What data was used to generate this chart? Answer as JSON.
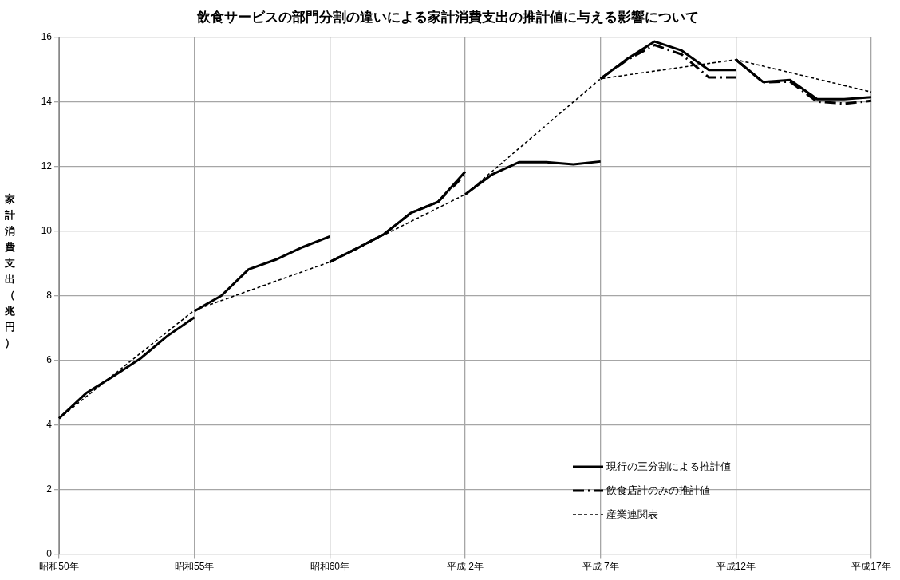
{
  "chart_data": {
    "type": "line",
    "title": "飲食サービスの部門分割の違いによる家計消費支出の推計値に与える影響について",
    "ylabel": "家計消費支出（兆円）",
    "categories": [
      "昭和50年",
      null,
      null,
      null,
      null,
      "昭和55年",
      null,
      null,
      null,
      null,
      "昭和60年",
      null,
      null,
      null,
      null,
      "平成 2年",
      null,
      null,
      null,
      null,
      "平成 7年",
      null,
      null,
      null,
      null,
      "平成12年",
      null,
      null,
      null,
      null,
      "平成17年"
    ],
    "ylim": [
      0,
      16
    ],
    "yticks": [
      0,
      2,
      4,
      6,
      8,
      10,
      12,
      14,
      16
    ],
    "grid": true,
    "legend": "bottom right",
    "marker": "none",
    "series": [
      {
        "name": "現行の三分割による推計値",
        "color": "#000000",
        "line_style": "solid",
        "values": [
          4.2,
          4.98,
          5.5,
          6.05,
          6.75,
          7.33,
          null,
          null,
          null,
          null,
          null,
          null,
          null,
          null,
          null,
          null,
          null,
          null,
          null,
          null,
          null,
          null,
          null,
          null,
          null,
          null,
          null,
          null,
          null,
          null,
          null
        ]
      },
      {
        "color": "#000000",
        "line_style": "solid",
        "values": [
          null,
          null,
          null,
          null,
          null,
          7.52,
          8.0,
          8.81,
          9.11,
          9.5,
          9.83,
          null,
          null,
          null,
          null,
          null,
          null,
          null,
          null,
          null,
          null,
          null,
          null,
          null,
          null,
          null,
          null,
          null,
          null,
          null,
          null
        ]
      },
      {
        "color": "#000000",
        "line_style": "solid",
        "values": [
          null,
          null,
          null,
          null,
          null,
          null,
          null,
          null,
          null,
          null,
          9.04,
          9.46,
          9.9,
          10.56,
          10.9,
          11.83,
          null,
          null,
          null,
          null,
          null,
          null,
          null,
          null,
          null,
          null,
          null,
          null,
          null,
          null,
          null
        ]
      },
      {
        "color": "#000000",
        "line_style": "solid",
        "values": [
          null,
          null,
          null,
          null,
          null,
          null,
          null,
          null,
          null,
          null,
          null,
          null,
          null,
          null,
          null,
          11.13,
          11.75,
          12.13,
          12.13,
          12.06,
          12.15,
          null,
          null,
          null,
          null,
          null,
          null,
          null,
          null,
          null,
          null
        ]
      },
      {
        "color": "#000000",
        "line_style": "solid",
        "values": [
          null,
          null,
          null,
          null,
          null,
          null,
          null,
          null,
          null,
          null,
          null,
          null,
          null,
          null,
          null,
          null,
          null,
          null,
          null,
          null,
          14.71,
          15.33,
          15.86,
          15.58,
          14.98,
          14.98,
          null,
          null,
          null,
          null,
          null
        ]
      },
      {
        "color": "#000000",
        "line_style": "solid",
        "values": [
          null,
          null,
          null,
          null,
          null,
          null,
          null,
          null,
          null,
          null,
          null,
          null,
          null,
          null,
          null,
          null,
          null,
          null,
          null,
          null,
          null,
          null,
          null,
          null,
          null,
          15.3,
          14.61,
          14.67,
          14.08,
          14.08,
          14.14
        ]
      },
      {
        "name": "飲食店計のみの推計値",
        "color": "#000000",
        "line_style": "dashed",
        "values": [
          null,
          null,
          null,
          null,
          null,
          null,
          null,
          null,
          null,
          null,
          9.04,
          9.46,
          9.9,
          10.56,
          10.9,
          11.75,
          null,
          null,
          null,
          null,
          null,
          null,
          null,
          null,
          null,
          null,
          null,
          null,
          null,
          null,
          null
        ]
      },
      {
        "color": "#000000",
        "line_style": "dashed",
        "values": [
          null,
          null,
          null,
          null,
          null,
          null,
          null,
          null,
          null,
          null,
          null,
          null,
          null,
          null,
          null,
          null,
          null,
          null,
          null,
          null,
          14.71,
          15.3,
          15.75,
          15.46,
          14.75,
          14.75,
          null,
          null,
          null,
          null,
          null
        ]
      },
      {
        "color": "#000000",
        "line_style": "dashed",
        "values": [
          null,
          null,
          null,
          null,
          null,
          null,
          null,
          null,
          null,
          null,
          null,
          null,
          null,
          null,
          null,
          null,
          null,
          null,
          null,
          null,
          null,
          null,
          null,
          null,
          null,
          15.3,
          14.6,
          14.62,
          14.0,
          13.94,
          14.03
        ]
      },
      {
        "name": "産業連関表",
        "color": "#000000",
        "line_style": "dotted",
        "x": [
          "昭和50年",
          "昭和55年",
          "昭和60年",
          "平成 2年",
          "平成 7年",
          "平成12年",
          "平成17年"
        ],
        "values": [
          4.2,
          7.55,
          9.04,
          11.13,
          14.71,
          15.3,
          14.3
        ]
      }
    ]
  }
}
